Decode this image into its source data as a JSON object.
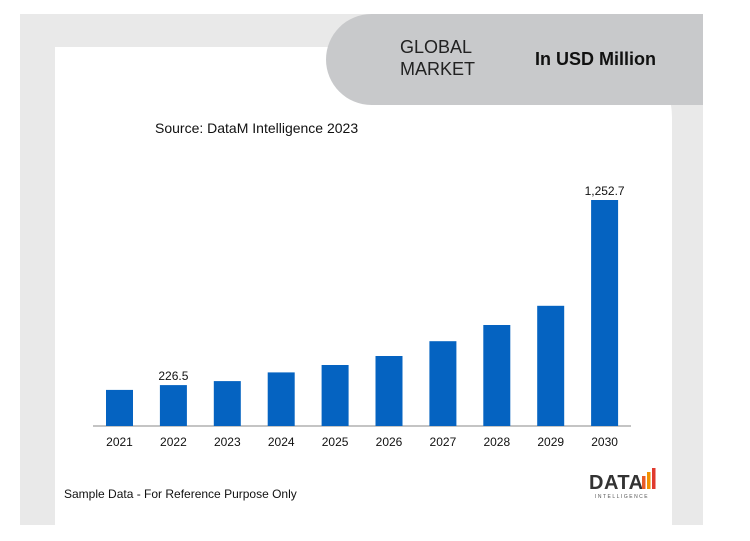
{
  "header": {
    "title_line1": "GLOBAL",
    "title_line2": "MARKET",
    "unit": "In USD Million"
  },
  "source": "Source: DataM Intelligence  2023",
  "footer_note": "Sample Data - For Reference Purpose Only",
  "logo": {
    "text": "DATA",
    "subtext": "INTELLIGENCE"
  },
  "colors": {
    "bar": "#0563c1",
    "pill": "#c8c9cb",
    "frame": "#e9e9e9"
  },
  "chart_data": {
    "type": "bar",
    "categories": [
      "2021",
      "2022",
      "2023",
      "2024",
      "2025",
      "2026",
      "2027",
      "2028",
      "2029",
      "2030"
    ],
    "values": [
      200,
      226.5,
      249,
      297,
      338,
      388,
      470,
      560,
      666,
      1252.7
    ],
    "data_labels": [
      {
        "index": 1,
        "text": "226.5"
      },
      {
        "index": 9,
        "text": "1,252.7"
      }
    ],
    "title": "",
    "xlabel": "",
    "ylabel": "",
    "grid": false,
    "legend": "none"
  }
}
